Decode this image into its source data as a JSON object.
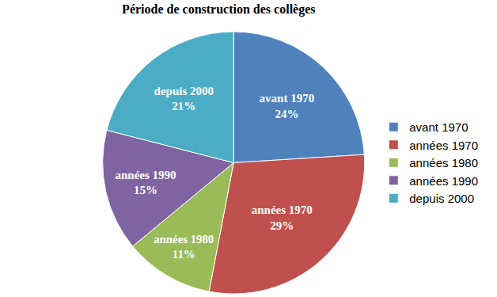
{
  "chart_data": {
    "type": "pie",
    "title": "Période de construction des collèges",
    "categories": [
      "avant 1970",
      "années 1970",
      "années 1980",
      "années 1990",
      "depuis 2000"
    ],
    "values": [
      24,
      29,
      11,
      15,
      21
    ],
    "value_labels": [
      "24%",
      "29%",
      "11%",
      "15%",
      "21%"
    ],
    "colors": [
      "#4F81BD",
      "#C0504D",
      "#9BBB59",
      "#8064A2",
      "#4BACC6"
    ],
    "data_labels": true,
    "legend": "right"
  }
}
